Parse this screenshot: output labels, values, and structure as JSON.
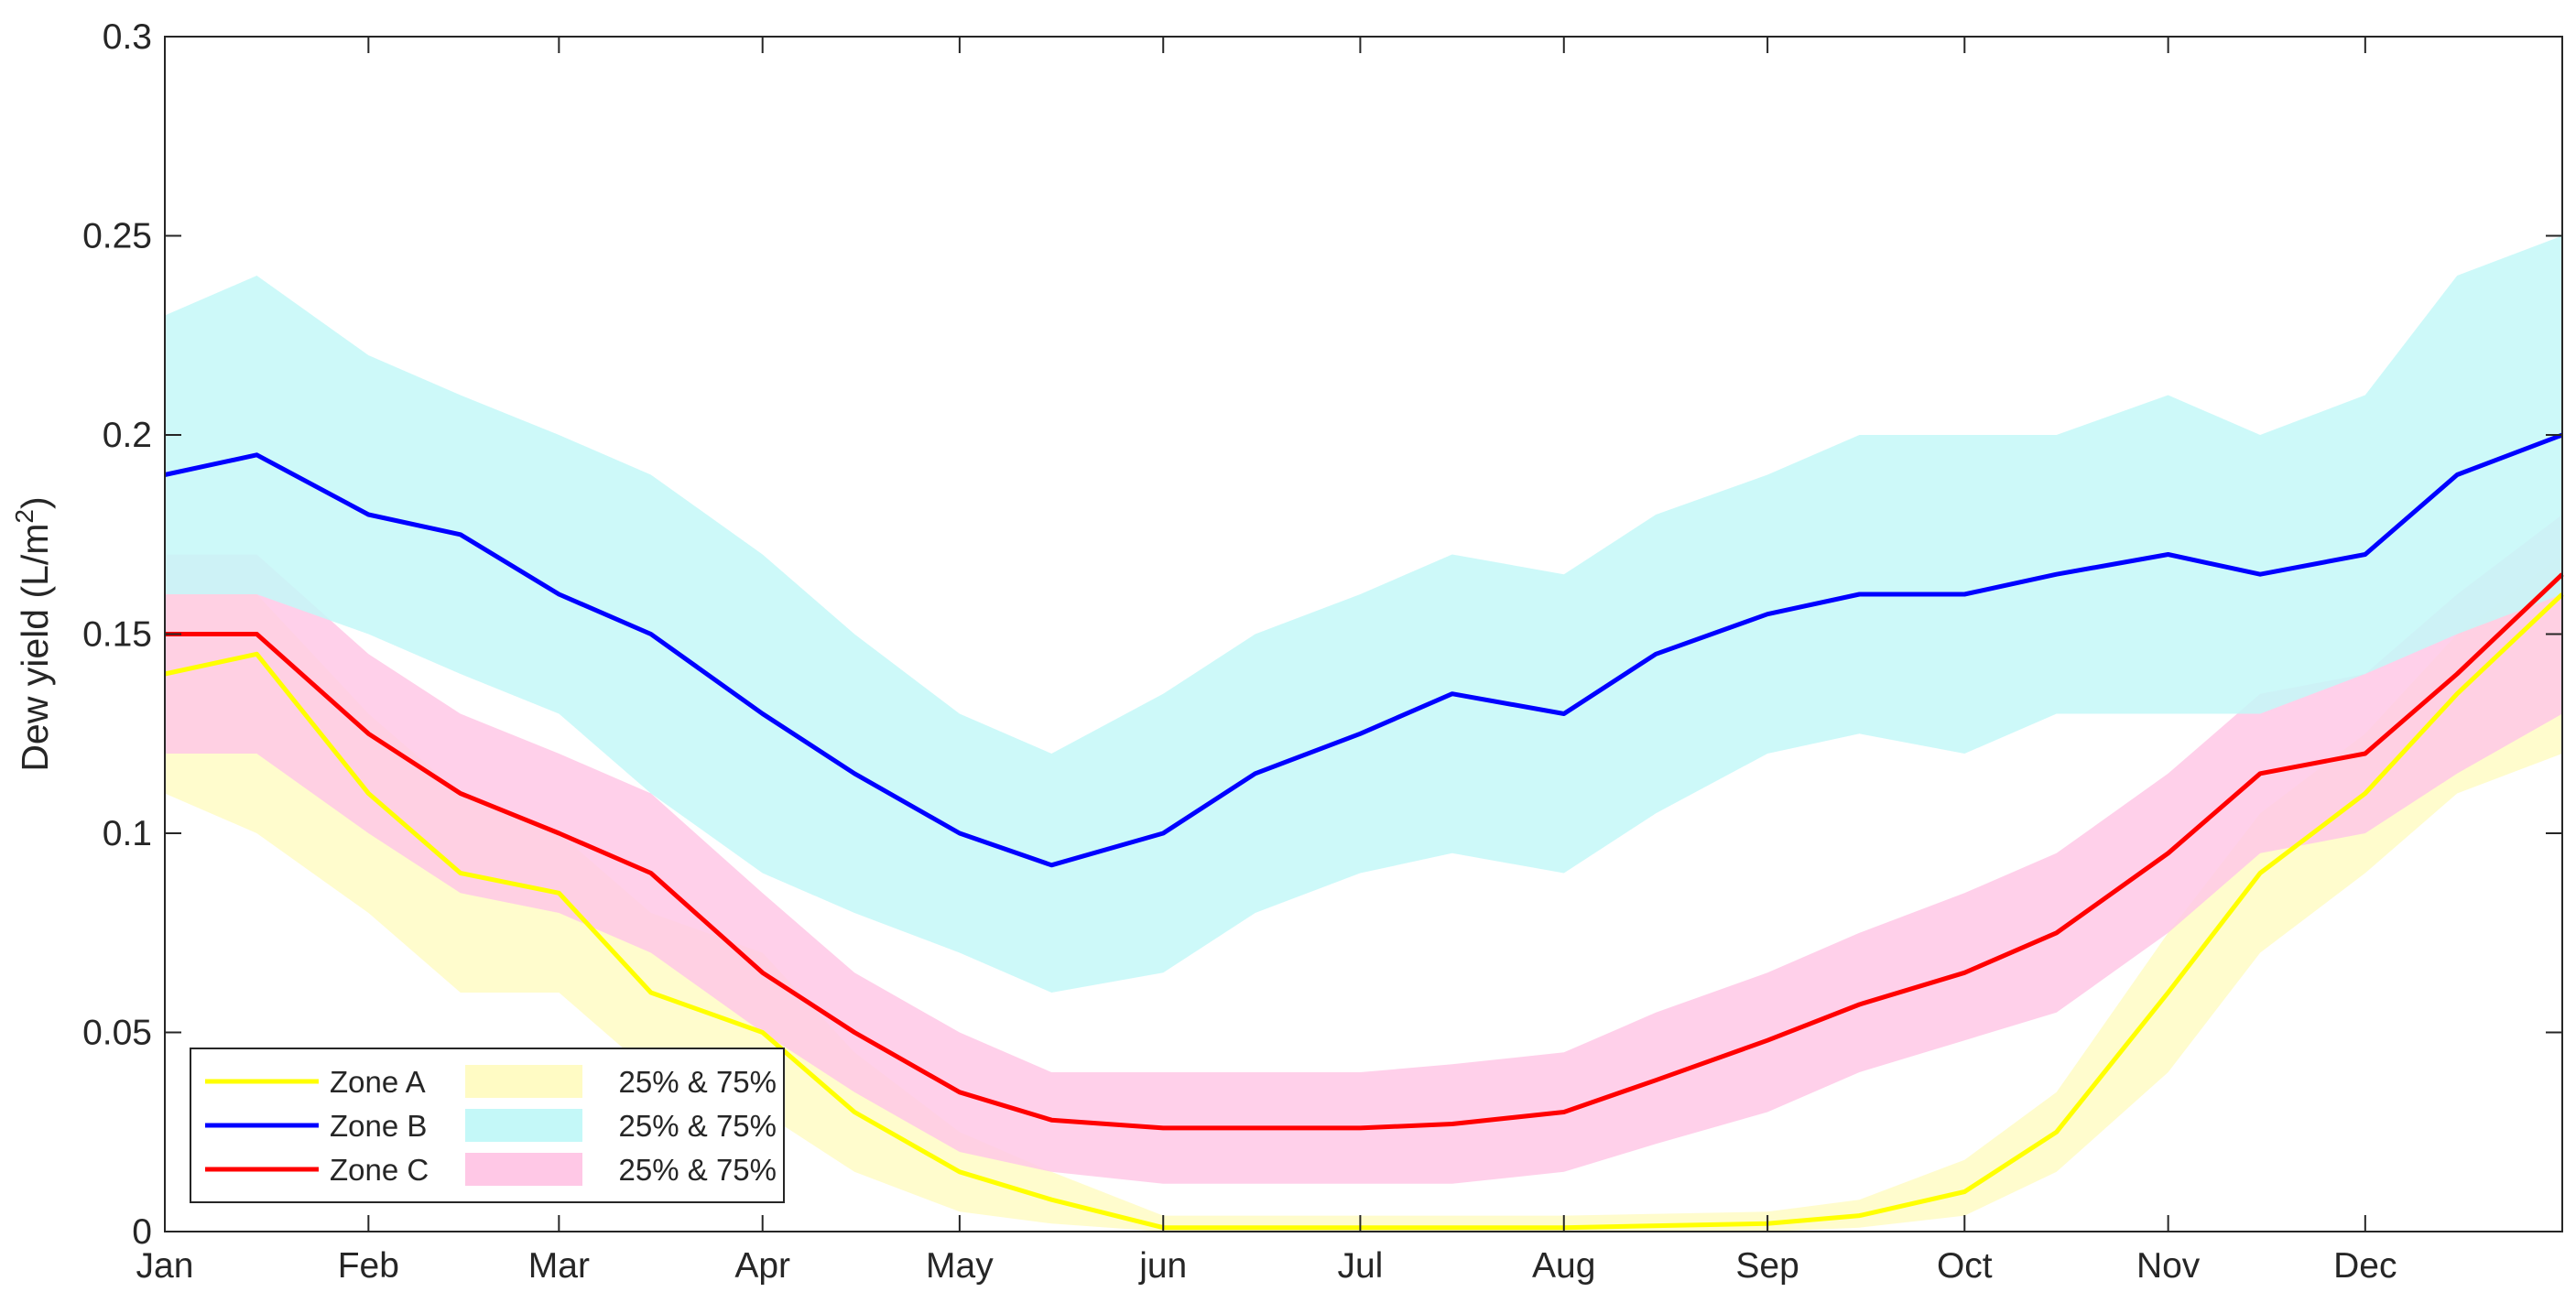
{
  "chart_data": {
    "type": "line",
    "title": "",
    "xlabel": "",
    "ylabel": "Dew yield (L/m²)",
    "ylabel_main": "Dew yield (L/m",
    "ylabel_sup": "2",
    "ylabel_end": ")",
    "ylim": [
      0,
      0.3
    ],
    "yticks": [
      "0",
      "0.05",
      "0.1",
      "0.15",
      "0.2",
      "0.25",
      "0.3"
    ],
    "xlim": [
      "2000-01-01",
      "2000-12-31"
    ],
    "x_axis": "day of year (Jan 1 – Dec 31)",
    "month_labels": [
      "Jan",
      "Feb",
      "Mar",
      "Apr",
      "May",
      "jun",
      "Jul",
      "Aug",
      "Sep",
      "Oct",
      "Nov",
      "Dec"
    ],
    "month_dates": [
      "2000-01-01",
      "2000-02-01",
      "2000-03-01",
      "2000-04-01",
      "2000-05-01",
      "2000-06-01",
      "2000-07-01",
      "2000-08-01",
      "2000-09-01",
      "2000-10-01",
      "2000-11-01",
      "2000-12-01"
    ],
    "grid": false,
    "legend_position": "bottom-left",
    "series": [
      {
        "name": "Zone A",
        "color": "#FFFF00",
        "band_label": "25% & 75%",
        "band_color": "#FFFBC4",
        "points": [
          {
            "x": "2000-01-01",
            "y": 0.14,
            "lo": 0.11,
            "hi": 0.16
          },
          {
            "x": "2000-01-15",
            "y": 0.145,
            "lo": 0.1,
            "hi": 0.16
          },
          {
            "x": "2000-02-01",
            "y": 0.11,
            "lo": 0.08,
            "hi": 0.13
          },
          {
            "x": "2000-02-15",
            "y": 0.09,
            "lo": 0.06,
            "hi": 0.11
          },
          {
            "x": "2000-03-01",
            "y": 0.085,
            "lo": 0.06,
            "hi": 0.1
          },
          {
            "x": "2000-03-15",
            "y": 0.06,
            "lo": 0.04,
            "hi": 0.08
          },
          {
            "x": "2000-04-01",
            "y": 0.05,
            "lo": 0.03,
            "hi": 0.07
          },
          {
            "x": "2000-04-15",
            "y": 0.03,
            "lo": 0.015,
            "hi": 0.045
          },
          {
            "x": "2000-05-01",
            "y": 0.015,
            "lo": 0.005,
            "hi": 0.025
          },
          {
            "x": "2000-05-15",
            "y": 0.008,
            "lo": 0.002,
            "hi": 0.015
          },
          {
            "x": "2000-06-01",
            "y": 0.001,
            "lo": 0.0,
            "hi": 0.004
          },
          {
            "x": "2000-07-01",
            "y": 0.001,
            "lo": 0.0,
            "hi": 0.004
          },
          {
            "x": "2000-08-01",
            "y": 0.001,
            "lo": 0.0,
            "hi": 0.004
          },
          {
            "x": "2000-09-01",
            "y": 0.002,
            "lo": 0.0,
            "hi": 0.005
          },
          {
            "x": "2000-09-15",
            "y": 0.004,
            "lo": 0.001,
            "hi": 0.008
          },
          {
            "x": "2000-10-01",
            "y": 0.01,
            "lo": 0.004,
            "hi": 0.018
          },
          {
            "x": "2000-10-15",
            "y": 0.025,
            "lo": 0.015,
            "hi": 0.035
          },
          {
            "x": "2000-11-01",
            "y": 0.06,
            "lo": 0.04,
            "hi": 0.075
          },
          {
            "x": "2000-11-15",
            "y": 0.09,
            "lo": 0.07,
            "hi": 0.105
          },
          {
            "x": "2000-12-01",
            "y": 0.11,
            "lo": 0.09,
            "hi": 0.125
          },
          {
            "x": "2000-12-15",
            "y": 0.135,
            "lo": 0.11,
            "hi": 0.15
          },
          {
            "x": "2000-12-31",
            "y": 0.16,
            "lo": 0.12,
            "hi": 0.17
          }
        ]
      },
      {
        "name": "Zone B",
        "color": "#0000FF",
        "band_label": "25% & 75%",
        "band_color": "#C4F8F8",
        "points": [
          {
            "x": "2000-01-01",
            "y": 0.19,
            "lo": 0.16,
            "hi": 0.23
          },
          {
            "x": "2000-01-15",
            "y": 0.195,
            "lo": 0.16,
            "hi": 0.24
          },
          {
            "x": "2000-02-01",
            "y": 0.18,
            "lo": 0.15,
            "hi": 0.22
          },
          {
            "x": "2000-02-15",
            "y": 0.175,
            "lo": 0.14,
            "hi": 0.21
          },
          {
            "x": "2000-03-01",
            "y": 0.16,
            "lo": 0.13,
            "hi": 0.2
          },
          {
            "x": "2000-03-15",
            "y": 0.15,
            "lo": 0.11,
            "hi": 0.19
          },
          {
            "x": "2000-04-01",
            "y": 0.13,
            "lo": 0.09,
            "hi": 0.17
          },
          {
            "x": "2000-04-15",
            "y": 0.115,
            "lo": 0.08,
            "hi": 0.15
          },
          {
            "x": "2000-05-01",
            "y": 0.1,
            "lo": 0.07,
            "hi": 0.13
          },
          {
            "x": "2000-05-15",
            "y": 0.092,
            "lo": 0.06,
            "hi": 0.12
          },
          {
            "x": "2000-06-01",
            "y": 0.1,
            "lo": 0.065,
            "hi": 0.135
          },
          {
            "x": "2000-06-15",
            "y": 0.115,
            "lo": 0.08,
            "hi": 0.15
          },
          {
            "x": "2000-07-01",
            "y": 0.125,
            "lo": 0.09,
            "hi": 0.16
          },
          {
            "x": "2000-07-15",
            "y": 0.135,
            "lo": 0.095,
            "hi": 0.17
          },
          {
            "x": "2000-08-01",
            "y": 0.13,
            "lo": 0.09,
            "hi": 0.165
          },
          {
            "x": "2000-08-15",
            "y": 0.145,
            "lo": 0.105,
            "hi": 0.18
          },
          {
            "x": "2000-09-01",
            "y": 0.155,
            "lo": 0.12,
            "hi": 0.19
          },
          {
            "x": "2000-09-15",
            "y": 0.16,
            "lo": 0.125,
            "hi": 0.2
          },
          {
            "x": "2000-10-01",
            "y": 0.16,
            "lo": 0.12,
            "hi": 0.2
          },
          {
            "x": "2000-10-15",
            "y": 0.165,
            "lo": 0.13,
            "hi": 0.2
          },
          {
            "x": "2000-11-01",
            "y": 0.17,
            "lo": 0.13,
            "hi": 0.21
          },
          {
            "x": "2000-11-15",
            "y": 0.165,
            "lo": 0.13,
            "hi": 0.2
          },
          {
            "x": "2000-12-01",
            "y": 0.17,
            "lo": 0.14,
            "hi": 0.21
          },
          {
            "x": "2000-12-15",
            "y": 0.19,
            "lo": 0.15,
            "hi": 0.24
          },
          {
            "x": "2000-12-31",
            "y": 0.2,
            "lo": 0.16,
            "hi": 0.25
          }
        ]
      },
      {
        "name": "Zone C",
        "color": "#FF0000",
        "band_label": "25% & 75%",
        "band_color": "#FFC8E6",
        "points": [
          {
            "x": "2000-01-01",
            "y": 0.15,
            "lo": 0.12,
            "hi": 0.17
          },
          {
            "x": "2000-01-15",
            "y": 0.15,
            "lo": 0.12,
            "hi": 0.17
          },
          {
            "x": "2000-02-01",
            "y": 0.125,
            "lo": 0.1,
            "hi": 0.145
          },
          {
            "x": "2000-02-15",
            "y": 0.11,
            "lo": 0.085,
            "hi": 0.13
          },
          {
            "x": "2000-03-01",
            "y": 0.1,
            "lo": 0.08,
            "hi": 0.12
          },
          {
            "x": "2000-03-15",
            "y": 0.09,
            "lo": 0.07,
            "hi": 0.11
          },
          {
            "x": "2000-04-01",
            "y": 0.065,
            "lo": 0.05,
            "hi": 0.085
          },
          {
            "x": "2000-04-15",
            "y": 0.05,
            "lo": 0.035,
            "hi": 0.065
          },
          {
            "x": "2000-05-01",
            "y": 0.035,
            "lo": 0.02,
            "hi": 0.05
          },
          {
            "x": "2000-05-15",
            "y": 0.028,
            "lo": 0.015,
            "hi": 0.04
          },
          {
            "x": "2000-06-01",
            "y": 0.026,
            "lo": 0.012,
            "hi": 0.04
          },
          {
            "x": "2000-06-15",
            "y": 0.026,
            "lo": 0.012,
            "hi": 0.04
          },
          {
            "x": "2000-07-01",
            "y": 0.026,
            "lo": 0.012,
            "hi": 0.04
          },
          {
            "x": "2000-07-15",
            "y": 0.027,
            "lo": 0.012,
            "hi": 0.042
          },
          {
            "x": "2000-08-01",
            "y": 0.03,
            "lo": 0.015,
            "hi": 0.045
          },
          {
            "x": "2000-08-15",
            "y": 0.038,
            "lo": 0.022,
            "hi": 0.055
          },
          {
            "x": "2000-09-01",
            "y": 0.048,
            "lo": 0.03,
            "hi": 0.065
          },
          {
            "x": "2000-09-15",
            "y": 0.057,
            "lo": 0.04,
            "hi": 0.075
          },
          {
            "x": "2000-10-01",
            "y": 0.065,
            "lo": 0.048,
            "hi": 0.085
          },
          {
            "x": "2000-10-15",
            "y": 0.075,
            "lo": 0.055,
            "hi": 0.095
          },
          {
            "x": "2000-11-01",
            "y": 0.095,
            "lo": 0.075,
            "hi": 0.115
          },
          {
            "x": "2000-11-15",
            "y": 0.115,
            "lo": 0.095,
            "hi": 0.135
          },
          {
            "x": "2000-12-01",
            "y": 0.12,
            "lo": 0.1,
            "hi": 0.14
          },
          {
            "x": "2000-12-15",
            "y": 0.14,
            "lo": 0.115,
            "hi": 0.16
          },
          {
            "x": "2000-12-31",
            "y": 0.165,
            "lo": 0.13,
            "hi": 0.18
          }
        ]
      }
    ]
  }
}
